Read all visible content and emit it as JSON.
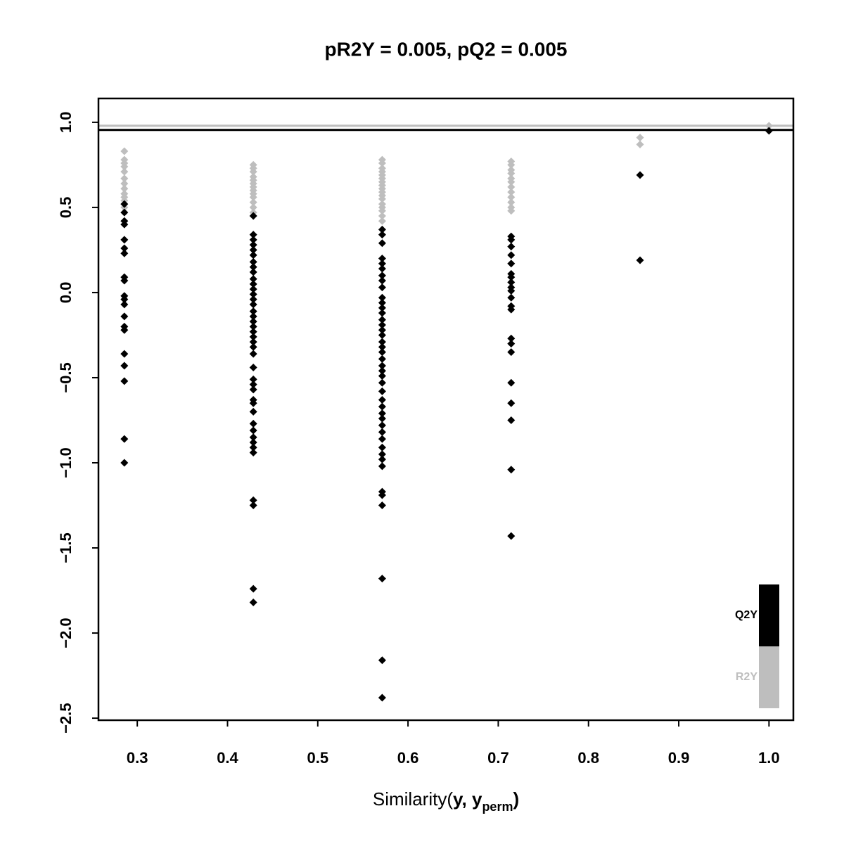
{
  "chart_data": {
    "type": "scatter",
    "title": "pR2Y = 0.005, pQ2 = 0.005",
    "x_label": [
      "Similarity(",
      "y",
      ", ",
      "y",
      "perm",
      ")"
    ],
    "xlim": [
      0.257,
      1.027
    ],
    "ylim": [
      -2.512,
      1.14
    ],
    "xticks": [
      0.3,
      0.4,
      0.5,
      0.6,
      0.7,
      0.8,
      0.9,
      {
        "value": 1.0,
        "label": "1.0"
      }
    ],
    "yticks": [
      {
        "value": -2.5,
        "label": "−2.5"
      },
      {
        "value": -2.0,
        "label": "−2.0"
      },
      {
        "value": -1.5,
        "label": "−1.5"
      },
      {
        "value": -1.0,
        "label": "−1.0"
      },
      {
        "value": -0.5,
        "label": "−0.5"
      },
      {
        "value": 0,
        "label": "0.0"
      },
      0.5,
      {
        "value": 1.0,
        "label": "1.0"
      }
    ],
    "legend": "bottom-right",
    "hlines": [
      {
        "value": 0.98,
        "color": "#bebebe"
      },
      {
        "value": 0.955,
        "color": "#000000"
      }
    ],
    "series": [
      {
        "name": "R2Y",
        "color": "#bebebe",
        "x": [
          0.2857,
          0.2857,
          0.2857,
          0.2857,
          0.2857,
          0.2857,
          0.2857,
          0.2857,
          0.2857,
          0.2857,
          0.2857,
          0.2857,
          0.4286,
          0.4286,
          0.4286,
          0.4286,
          0.4286,
          0.4286,
          0.4286,
          0.4286,
          0.4286,
          0.4286,
          0.4286,
          0.4286,
          0.4286,
          0.4286,
          0.5714,
          0.5714,
          0.5714,
          0.5714,
          0.5714,
          0.5714,
          0.5714,
          0.5714,
          0.5714,
          0.5714,
          0.5714,
          0.5714,
          0.5714,
          0.5714,
          0.5714,
          0.5714,
          0.5714,
          0.7143,
          0.7143,
          0.7143,
          0.7143,
          0.7143,
          0.7143,
          0.7143,
          0.7143,
          0.7143,
          0.7143,
          0.7143,
          0.7143,
          0.8571,
          0.8571,
          1.0
        ],
        "values": [
          0.83,
          0.78,
          0.76,
          0.74,
          0.71,
          0.67,
          0.64,
          0.61,
          0.58,
          0.56,
          0.54,
          0.5,
          0.75,
          0.73,
          0.71,
          0.68,
          0.66,
          0.64,
          0.62,
          0.6,
          0.58,
          0.56,
          0.53,
          0.5,
          0.47,
          0.45,
          0.78,
          0.76,
          0.73,
          0.71,
          0.69,
          0.67,
          0.65,
          0.63,
          0.61,
          0.59,
          0.57,
          0.55,
          0.52,
          0.5,
          0.48,
          0.45,
          0.42,
          0.77,
          0.75,
          0.72,
          0.7,
          0.67,
          0.65,
          0.62,
          0.59,
          0.56,
          0.53,
          0.5,
          0.48,
          0.91,
          0.87,
          0.98
        ]
      },
      {
        "name": "Q2Y",
        "color": "#000000",
        "x": [
          0.2857,
          0.2857,
          0.2857,
          0.2857,
          0.2857,
          0.2857,
          0.2857,
          0.2857,
          0.2857,
          0.2857,
          0.2857,
          0.2857,
          0.2857,
          0.2857,
          0.2857,
          0.2857,
          0.2857,
          0.2857,
          0.2857,
          0.2857,
          0.4286,
          0.4286,
          0.4286,
          0.4286,
          0.4286,
          0.4286,
          0.4286,
          0.4286,
          0.4286,
          0.4286,
          0.4286,
          0.4286,
          0.4286,
          0.4286,
          0.4286,
          0.4286,
          0.4286,
          0.4286,
          0.4286,
          0.4286,
          0.4286,
          0.4286,
          0.4286,
          0.4286,
          0.4286,
          0.4286,
          0.4286,
          0.4286,
          0.4286,
          0.4286,
          0.4286,
          0.4286,
          0.4286,
          0.4286,
          0.4286,
          0.4286,
          0.4286,
          0.4286,
          0.4286,
          0.4286,
          0.4286,
          0.5714,
          0.5714,
          0.5714,
          0.5714,
          0.5714,
          0.5714,
          0.5714,
          0.5714,
          0.5714,
          0.5714,
          0.5714,
          0.5714,
          0.5714,
          0.5714,
          0.5714,
          0.5714,
          0.5714,
          0.5714,
          0.5714,
          0.5714,
          0.5714,
          0.5714,
          0.5714,
          0.5714,
          0.5714,
          0.5714,
          0.5714,
          0.5714,
          0.5714,
          0.5714,
          0.5714,
          0.5714,
          0.5714,
          0.5714,
          0.5714,
          0.5714,
          0.5714,
          0.5714,
          0.5714,
          0.5714,
          0.5714,
          0.5714,
          0.5714,
          0.7143,
          0.7143,
          0.7143,
          0.7143,
          0.7143,
          0.7143,
          0.7143,
          0.7143,
          0.7143,
          0.7143,
          0.7143,
          0.7143,
          0.7143,
          0.7143,
          0.7143,
          0.7143,
          0.7143,
          0.7143,
          0.7143,
          0.7143,
          0.7143,
          0.8571,
          0.8571,
          1.0
        ],
        "values": [
          0.52,
          0.47,
          0.42,
          0.4,
          0.31,
          0.26,
          0.23,
          0.09,
          0.07,
          -0.02,
          -0.04,
          -0.07,
          -0.14,
          -0.2,
          -0.22,
          -0.36,
          -0.43,
          -0.52,
          -0.86,
          -1.0,
          0.45,
          0.34,
          0.31,
          0.28,
          0.25,
          0.22,
          0.18,
          0.15,
          0.12,
          0.08,
          0.05,
          0.02,
          -0.01,
          -0.04,
          -0.07,
          -0.11,
          -0.14,
          -0.17,
          -0.2,
          -0.23,
          -0.26,
          -0.29,
          -0.32,
          -0.36,
          -0.44,
          -0.51,
          -0.54,
          -0.57,
          -0.63,
          -0.65,
          -0.7,
          -0.77,
          -0.81,
          -0.85,
          -0.88,
          -0.91,
          -0.94,
          -1.22,
          -1.25,
          -1.74,
          -1.82,
          0.37,
          0.34,
          0.29,
          0.2,
          0.17,
          0.14,
          0.1,
          0.07,
          0.03,
          -0.03,
          -0.06,
          -0.09,
          -0.12,
          -0.16,
          -0.19,
          -0.22,
          -0.25,
          -0.29,
          -0.32,
          -0.35,
          -0.39,
          -0.43,
          -0.46,
          -0.49,
          -0.53,
          -0.58,
          -0.63,
          -0.67,
          -0.71,
          -0.74,
          -0.78,
          -0.82,
          -0.86,
          -0.91,
          -0.95,
          -0.98,
          -1.02,
          -1.17,
          -1.19,
          -1.25,
          -1.68,
          -2.16,
          -2.38,
          0.33,
          0.31,
          0.27,
          0.22,
          0.17,
          0.11,
          0.09,
          0.06,
          0.03,
          0.01,
          -0.03,
          -0.08,
          -0.1,
          -0.27,
          -0.3,
          -0.35,
          -0.53,
          -0.65,
          -0.75,
          -1.04,
          -1.43,
          0.69,
          0.19,
          0.95
        ]
      }
    ]
  }
}
